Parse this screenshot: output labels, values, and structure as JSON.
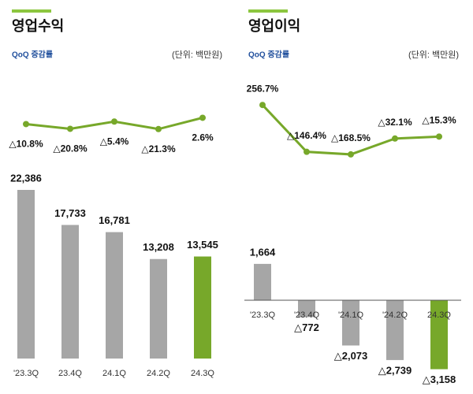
{
  "chart_data": [
    {
      "type": "combo",
      "title": "영업수익",
      "subtitle": "QoQ 증감률",
      "unit_label": "(단위: 백만원)",
      "categories": [
        "'23.3Q",
        "23.4Q",
        "24.1Q",
        "24.2Q",
        "24.3Q"
      ],
      "series": [
        {
          "type": "bar",
          "colors": [
            "#a6a6a6",
            "#a6a6a6",
            "#a6a6a6",
            "#a6a6a6",
            "#77a82a"
          ],
          "values": [
            22386,
            17733,
            16781,
            13208,
            13545
          ],
          "value_labels": [
            "22,386",
            "17,733",
            "16,781",
            "13,208",
            "13,545"
          ]
        },
        {
          "type": "line",
          "axis": "y2",
          "color": "#77a82a",
          "values": [
            -10.8,
            -20.8,
            -5.4,
            -21.3,
            2.6
          ],
          "value_labels": [
            "△10.8%",
            "△20.8%",
            "△5.4%",
            "△21.3%",
            "2.6%"
          ]
        }
      ],
      "ylim": [
        0,
        25000
      ],
      "y2lim": [
        -90,
        60
      ]
    },
    {
      "type": "combo",
      "title": "영업이익",
      "subtitle": "QoQ 증감률",
      "unit_label": "(단위: 백만원)",
      "categories": [
        "'23.3Q",
        "'23.4Q",
        "'24.1Q",
        "'24.2Q",
        "24.3Q"
      ],
      "series": [
        {
          "type": "bar",
          "colors": [
            "#a6a6a6",
            "#a6a6a6",
            "#a6a6a6",
            "#a6a6a6",
            "#77a82a"
          ],
          "values": [
            1664,
            -772,
            -2073,
            -2739,
            -3158
          ],
          "value_labels": [
            "1,664",
            "△772",
            "△2,073",
            "△2,739",
            "△3,158"
          ]
        },
        {
          "type": "line",
          "axis": "y2",
          "color": "#77a82a",
          "values": [
            256.7,
            -146.4,
            -168.5,
            -32.1,
            -15.3
          ],
          "value_labels": [
            "256.7%",
            "△146.4%",
            "△168.5%",
            "△32.1%",
            "△15.3%"
          ]
        }
      ],
      "ylim": [
        -3500,
        3500
      ],
      "y2lim": [
        -230,
        380
      ]
    }
  ]
}
